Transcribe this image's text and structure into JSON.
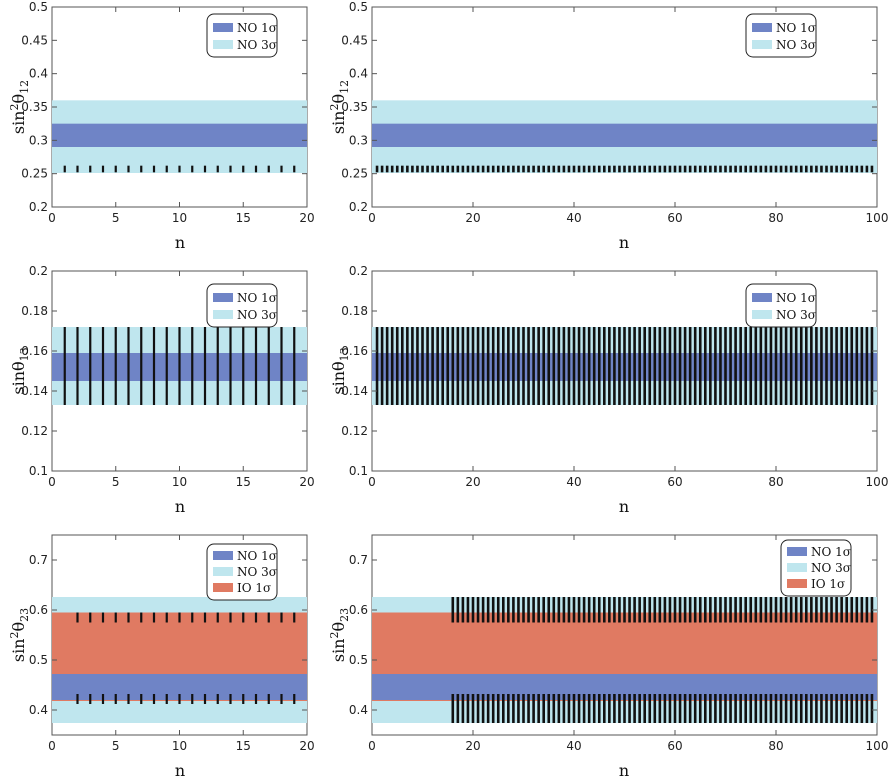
{
  "colors": {
    "no1": "#6f84c6",
    "no3": "#bfe6ee",
    "io1": "#e07a62",
    "lines": "#111111",
    "frame": "#555555"
  },
  "legend": {
    "no1": "NO 1σ",
    "no3": "NO 3σ",
    "io1": "IO 1σ"
  },
  "chart_data": [
    {
      "id": "s12_20",
      "type": "band",
      "xlabel": "n",
      "ylabel": "sin²θ12",
      "xlim": [
        0,
        20
      ],
      "xticks": [
        0,
        5,
        10,
        15,
        20
      ],
      "ylim": [
        0.2,
        0.5
      ],
      "yticks": [
        0.2,
        0.25,
        0.3,
        0.35,
        0.4,
        0.45,
        0.5
      ],
      "legend_position": "top-right",
      "bands": [
        {
          "name": "NO 3σ",
          "color_key": "no3",
          "range": [
            0.251,
            0.36
          ]
        },
        {
          "name": "NO 1σ",
          "color_key": "no1",
          "range": [
            0.29,
            0.325
          ]
        }
      ],
      "points": {
        "n_start": 1,
        "n_end": 19,
        "step": 1,
        "segments": [
          [
            0.252,
            0.262
          ]
        ]
      }
    },
    {
      "id": "s12_100",
      "type": "band",
      "xlabel": "n",
      "ylabel": "sin²θ12",
      "xlim": [
        0,
        100
      ],
      "xticks": [
        0,
        20,
        40,
        60,
        80,
        100
      ],
      "ylim": [
        0.2,
        0.5
      ],
      "yticks": [
        0.2,
        0.25,
        0.3,
        0.35,
        0.4,
        0.45,
        0.5
      ],
      "legend_position": "top-right",
      "bands": [
        {
          "name": "NO 3σ",
          "color_key": "no3",
          "range": [
            0.251,
            0.36
          ]
        },
        {
          "name": "NO 1σ",
          "color_key": "no1",
          "range": [
            0.29,
            0.325
          ]
        }
      ],
      "points": {
        "n_start": 1,
        "n_end": 99,
        "step": 1,
        "segments": [
          [
            0.252,
            0.262
          ]
        ]
      }
    },
    {
      "id": "s13_20",
      "type": "band",
      "xlabel": "n",
      "ylabel": "sinθ13",
      "xlim": [
        0,
        20
      ],
      "xticks": [
        0,
        5,
        10,
        15,
        20
      ],
      "ylim": [
        0.1,
        0.2
      ],
      "yticks": [
        0.1,
        0.12,
        0.14,
        0.16,
        0.18,
        0.2
      ],
      "legend_position": "top-right",
      "bands": [
        {
          "name": "NO 3σ",
          "color_key": "no3",
          "range": [
            0.133,
            0.172
          ]
        },
        {
          "name": "NO 1σ",
          "color_key": "no1",
          "range": [
            0.145,
            0.159
          ]
        }
      ],
      "points": {
        "n_start": 1,
        "n_end": 19,
        "step": 1,
        "segments": [
          [
            0.133,
            0.172
          ]
        ]
      }
    },
    {
      "id": "s13_100",
      "type": "band",
      "xlabel": "n",
      "ylabel": "sinθ13",
      "xlim": [
        0,
        100
      ],
      "xticks": [
        0,
        20,
        40,
        60,
        80,
        100
      ],
      "ylim": [
        0.1,
        0.2
      ],
      "yticks": [
        0.1,
        0.12,
        0.14,
        0.16,
        0.18,
        0.2
      ],
      "legend_position": "top-right",
      "bands": [
        {
          "name": "NO 3σ",
          "color_key": "no3",
          "range": [
            0.133,
            0.172
          ]
        },
        {
          "name": "NO 1σ",
          "color_key": "no1",
          "range": [
            0.145,
            0.159
          ]
        }
      ],
      "points": {
        "n_start": 1,
        "n_end": 99,
        "step": 1,
        "segments": [
          [
            0.133,
            0.172
          ]
        ]
      }
    },
    {
      "id": "s23_20",
      "type": "band",
      "xlabel": "n",
      "ylabel": "sin²θ23",
      "xlim": [
        0,
        20
      ],
      "xticks": [
        0,
        5,
        10,
        15,
        20
      ],
      "ylim": [
        0.35,
        0.75
      ],
      "yticks": [
        0.4,
        0.5,
        0.6,
        0.7
      ],
      "legend_position": "top-right",
      "bands": [
        {
          "name": "NO 3σ",
          "color_key": "no3",
          "range": [
            0.374,
            0.626
          ]
        },
        {
          "name": "IO 1σ",
          "color_key": "io1",
          "range": [
            0.418,
            0.595
          ]
        },
        {
          "name": "NO 1σ",
          "color_key": "no1",
          "range": [
            0.42,
            0.472
          ]
        }
      ],
      "points": {
        "n_start": 2,
        "n_end": 19,
        "step": 1,
        "segments": [
          [
            0.412,
            0.432
          ],
          [
            0.575,
            0.595
          ]
        ]
      }
    },
    {
      "id": "s23_100",
      "type": "band",
      "xlabel": "n",
      "ylabel": "sin²θ23",
      "xlim": [
        0,
        100
      ],
      "xticks": [
        0,
        20,
        40,
        60,
        80,
        100
      ],
      "ylim": [
        0.35,
        0.75
      ],
      "yticks": [
        0.4,
        0.5,
        0.6,
        0.7
      ],
      "legend_position": "top-right",
      "bands": [
        {
          "name": "NO 3σ",
          "color_key": "no3",
          "range": [
            0.374,
            0.626
          ]
        },
        {
          "name": "IO 1σ",
          "color_key": "io1",
          "range": [
            0.418,
            0.595
          ]
        },
        {
          "name": "NO 1σ",
          "color_key": "no1",
          "range": [
            0.42,
            0.472
          ]
        }
      ],
      "points": {
        "n_start": 16,
        "n_end": 99,
        "step": 1,
        "segments": [
          [
            0.374,
            0.432
          ],
          [
            0.575,
            0.626
          ]
        ]
      }
    }
  ]
}
